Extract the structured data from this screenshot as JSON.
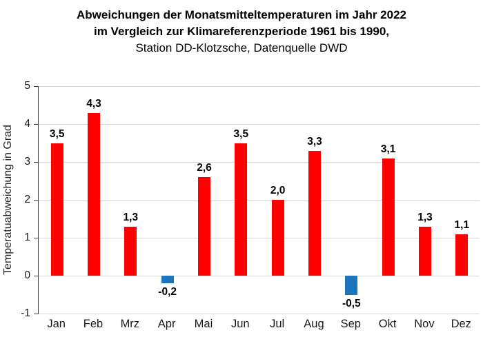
{
  "title": {
    "line1": "Abweichungen der Monatsmitteltemperaturen im Jahr 2022",
    "line2": "im Vergleich zur Klimareferenzperiode 1961 bis 1990,",
    "line3": "Station DD-Klotzsche, Datenquelle DWD"
  },
  "chart_data": {
    "type": "bar",
    "title": "Abweichungen der Monatsmitteltemperaturen im Jahr 2022 im Vergleich zur Klimareferenzperiode 1961 bis 1990, Station DD-Klotzsche, Datenquelle DWD",
    "categories": [
      "Jan",
      "Feb",
      "Mrz",
      "Apr",
      "Mai",
      "Jun",
      "Jul",
      "Aug",
      "Sep",
      "Okt",
      "Nov",
      "Dez"
    ],
    "values": [
      3.5,
      4.3,
      1.3,
      -0.2,
      2.6,
      3.5,
      2.0,
      3.3,
      -0.5,
      3.1,
      1.3,
      1.1
    ],
    "value_labels": [
      "3,5",
      "4,3",
      "1,3",
      "-0,2",
      "2,6",
      "3,5",
      "2,0",
      "3,3",
      "-0,5",
      "3,1",
      "1,3",
      "1,1"
    ],
    "xlabel": "",
    "ylabel": "Temperatuabweichung in Grad",
    "ylim": [
      -1,
      5
    ],
    "yticks": [
      5,
      4,
      3,
      2,
      1,
      0,
      -1
    ],
    "ytick_labels": [
      "5",
      "4",
      "3",
      "2",
      "1",
      "0",
      "-1"
    ],
    "grid": true,
    "legend": "none",
    "colors": {
      "bar_positive": "#ff0000",
      "bar_negative": "#1b75bc",
      "gridline": "#d9d9d9",
      "axis": "#404040",
      "text": "#000000"
    }
  }
}
